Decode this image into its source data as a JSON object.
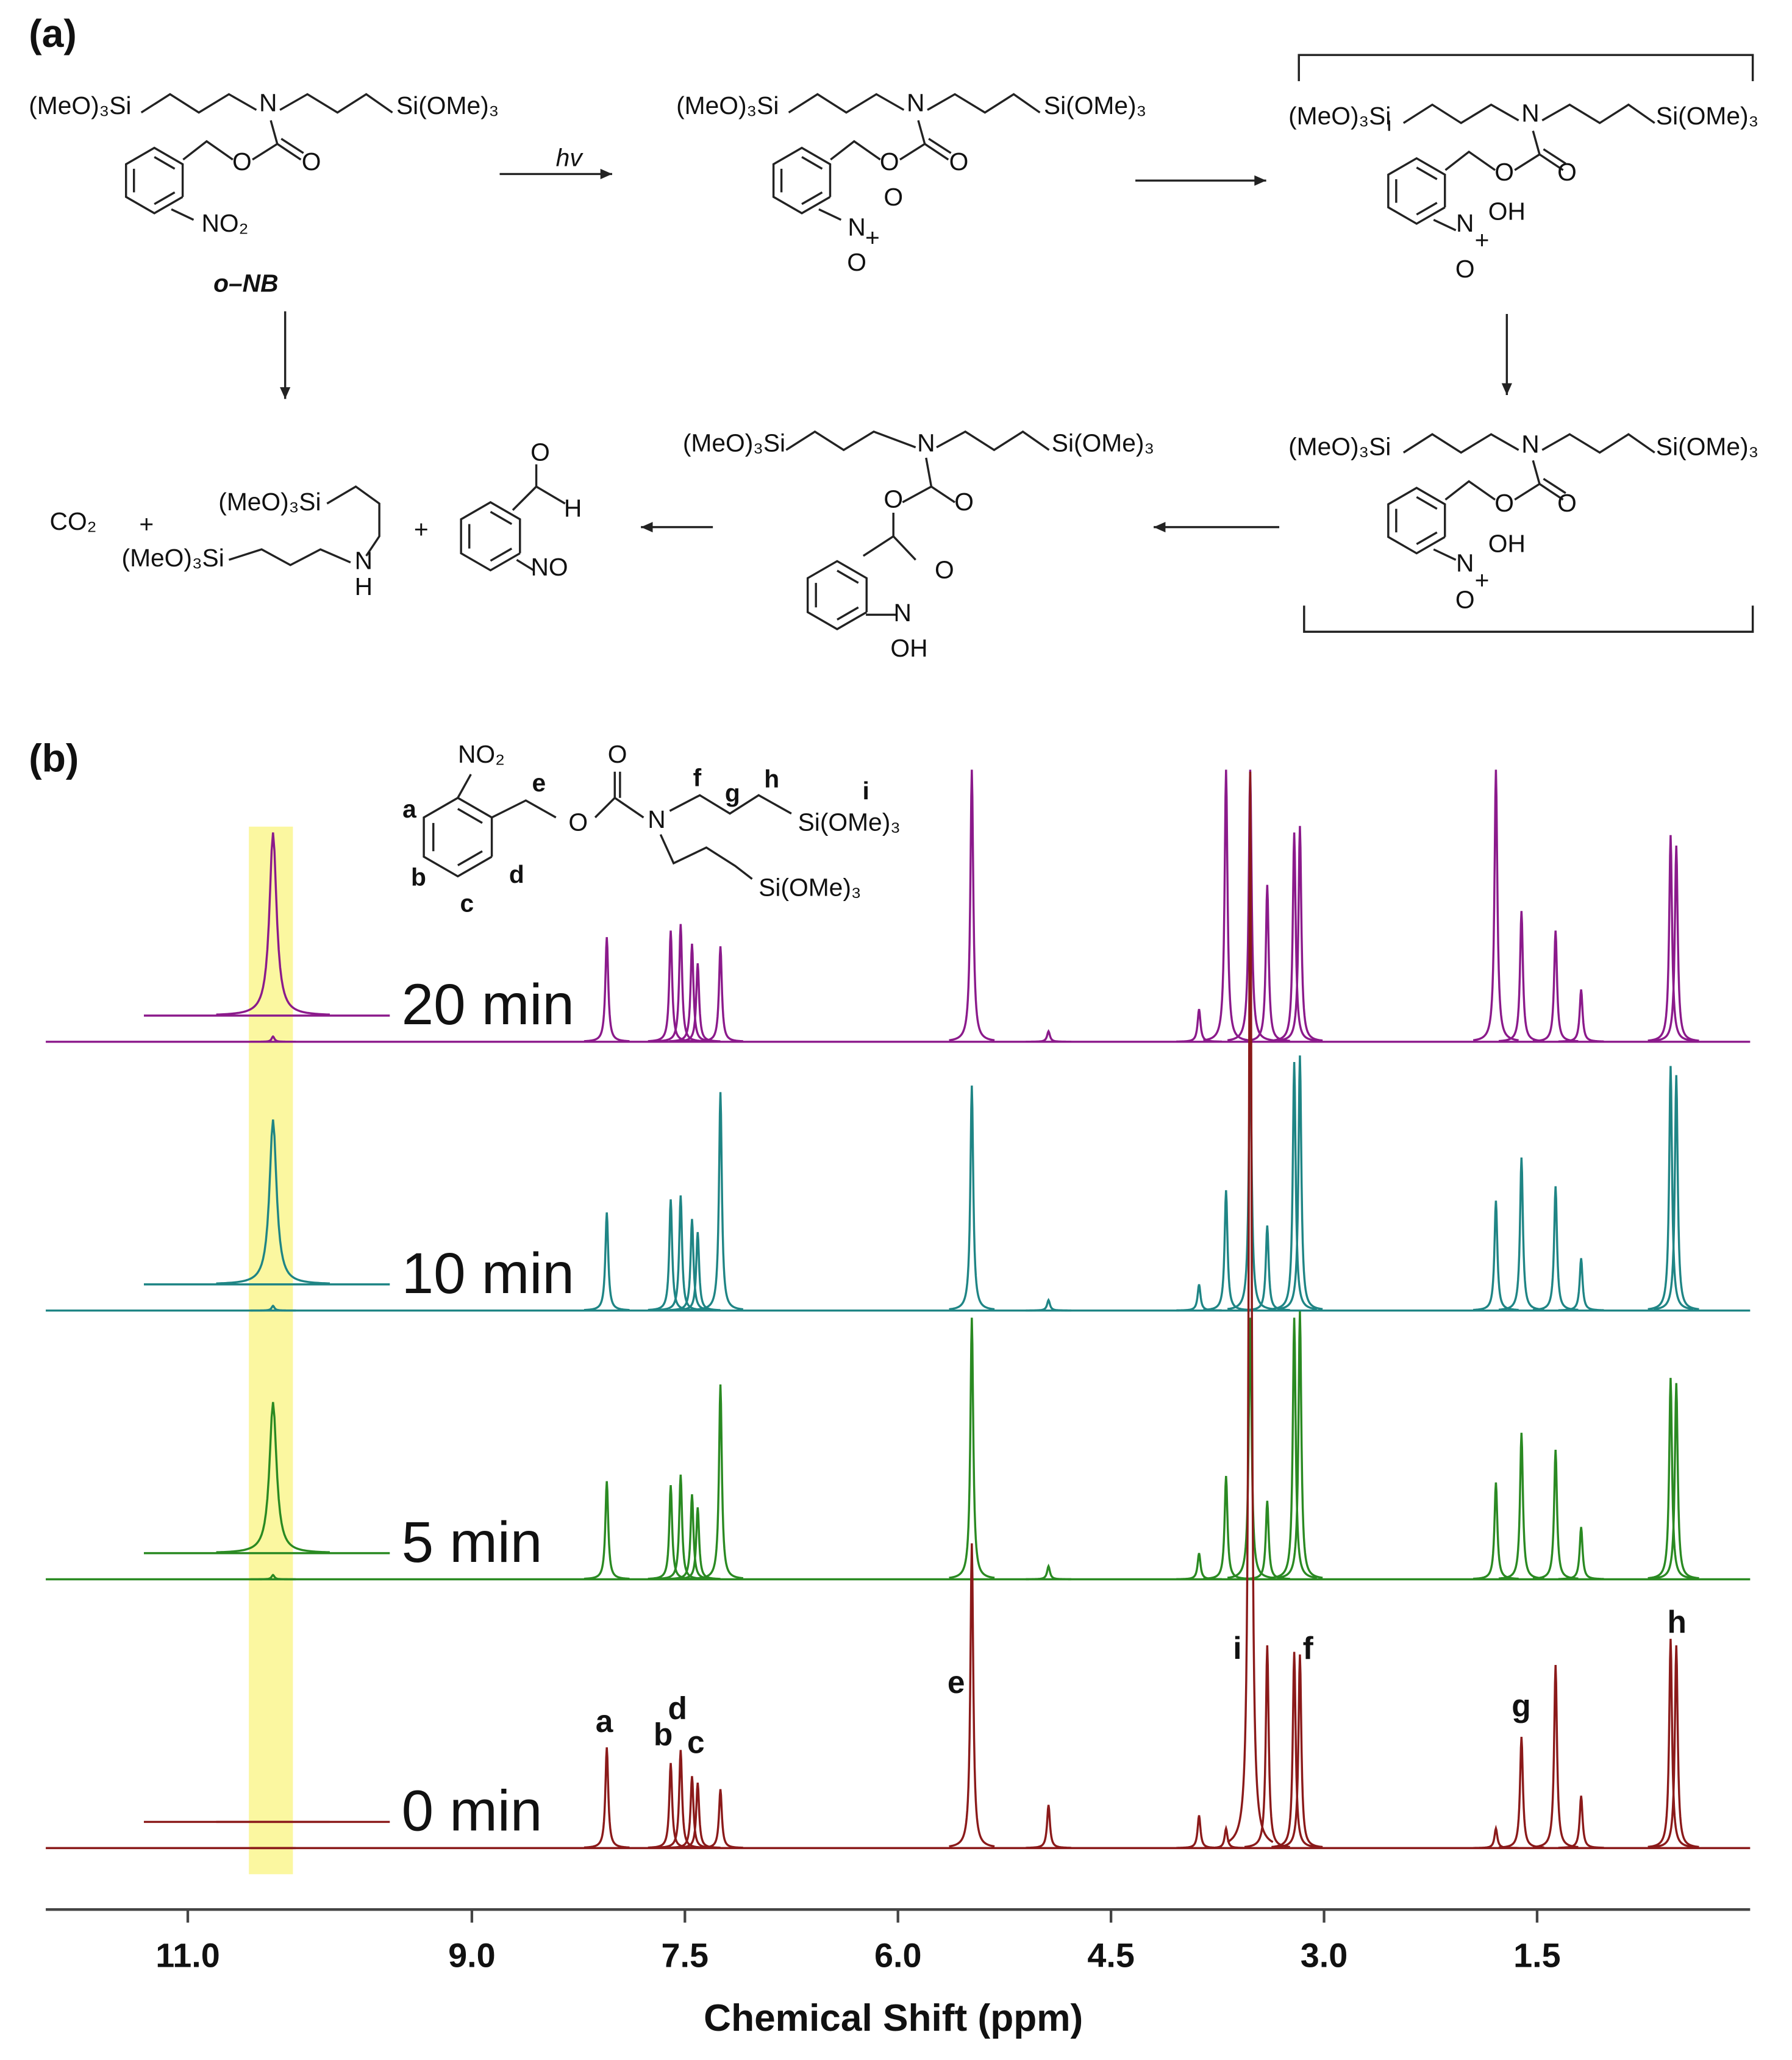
{
  "scheme": {
    "label": "(a)",
    "texts": [
      "(MeO)₃Si",
      "N",
      "Si(OMe)₃",
      "O",
      "O",
      "NO₂",
      "o–NB",
      "hv",
      "(MeO)₃Si",
      "N",
      "Si(OMe)₃",
      "O",
      "O",
      "O",
      "N",
      "+",
      "O",
      "(MeO)₃Si",
      "N",
      "Si(OMe)₃",
      "O",
      "O",
      "N",
      "OH",
      "+",
      "O",
      "(MeO)₃Si",
      "N",
      "Si(OMe)₃",
      "O",
      "O",
      "N",
      "OH",
      "+",
      "O",
      "(MeO)₃Si",
      "N",
      "Si(OMe)₃",
      "O",
      "O",
      "O",
      "N",
      "OH",
      "CO₂",
      "+",
      "(MeO)₃Si",
      "(MeO)₃Si",
      "N",
      "H",
      "+",
      "O",
      "H",
      "NO"
    ]
  },
  "panel_b_label": "(b)",
  "structure": [
    "NO₂",
    "a",
    "b",
    "c",
    "d",
    "e",
    "O",
    "O",
    "N",
    "f",
    "g",
    "h",
    "i",
    "Si(OMe)₃",
    "Si(OMe)₃"
  ],
  "chart_data": {
    "type": "spectrum",
    "xlabel": "Chemical Shift (ppm)",
    "xlim": [
      12,
      0
    ],
    "xticks": [
      {
        "value": 11,
        "label": "11.0"
      },
      {
        "value": 9,
        "label": "9.0"
      },
      {
        "value": 7.5,
        "label": "7.5"
      },
      {
        "value": 6,
        "label": "6.0"
      },
      {
        "value": 4.5,
        "label": "4.5"
      },
      {
        "value": 3,
        "label": "3.0"
      },
      {
        "value": 1.5,
        "label": "1.5"
      }
    ],
    "x": [
      10.4,
      8.05,
      7.6,
      7.53,
      7.45,
      7.41,
      7.25,
      5.48,
      4.94,
      3.88,
      3.69,
      3.52,
      3.4,
      3.21,
      3.17,
      1.79,
      1.61,
      1.37,
      1.19,
      0.56,
      0.52
    ],
    "series": [
      {
        "name": "0 min",
        "color": "#8b1a1a",
        "values": [
          0,
          77,
          65,
          75,
          55,
          50,
          45,
          233,
          33,
          25,
          15,
          823,
          155,
          150,
          148,
          15,
          85,
          140,
          40,
          160,
          155
        ]
      },
      {
        "name": "5 min",
        "color": "#2a8a22",
        "values": [
          3.3,
          75,
          72,
          80,
          65,
          55,
          149,
          200,
          10,
          20,
          79,
          200,
          60,
          200,
          205,
          74,
          112,
          99,
          40,
          154,
          150
        ]
      },
      {
        "name": "10 min",
        "color": "#1f8585",
        "values": [
          3.6,
          75,
          85,
          88,
          70,
          60,
          167,
          172,
          8,
          20,
          92,
          200,
          65,
          190,
          195,
          84,
          117,
          95,
          40,
          187,
          180
        ]
      },
      {
        "name": "20 min",
        "color": "#8b1a8b",
        "values": [
          4,
          80,
          85,
          90,
          75,
          60,
          73,
          208,
          8,
          25,
          208,
          208,
          120,
          160,
          165,
          208,
          100,
          85,
          40,
          158,
          150
        ]
      }
    ],
    "annotations": [
      "a",
      "b",
      "d",
      "c",
      "e",
      "i",
      "f",
      "g",
      "h"
    ],
    "highlight_range": [
      10.57,
      10.26
    ],
    "highlight_color": "#fbf7a0"
  }
}
